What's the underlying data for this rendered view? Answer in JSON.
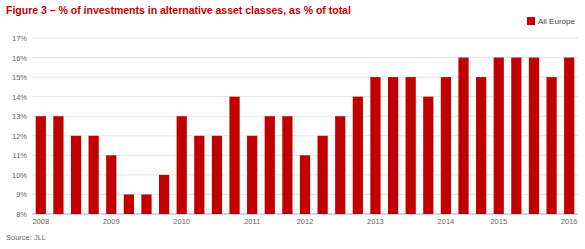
{
  "chart_data": {
    "type": "bar",
    "title": "Figure 3 – % of investments in alternative asset classes, as % of total",
    "source": "Source: JLL",
    "categories": [
      "2008",
      null,
      null,
      null,
      "2009",
      null,
      null,
      null,
      "2010",
      null,
      null,
      null,
      "2011",
      null,
      null,
      "2012",
      null,
      null,
      null,
      "2013",
      null,
      null,
      null,
      "2014",
      null,
      null,
      "2015",
      null,
      null,
      null,
      "2016"
    ],
    "series": [
      {
        "name": "All Europe",
        "color": "#c00000",
        "values": [
          13,
          13,
          12,
          12,
          11,
          9,
          9,
          10,
          13,
          12,
          12,
          14,
          12,
          13,
          13,
          11,
          12,
          13,
          14,
          15,
          15,
          15,
          14,
          15,
          16,
          15,
          16,
          16,
          16,
          15,
          16
        ]
      }
    ],
    "ylim": [
      8,
      17
    ],
    "yticks": [
      {
        "value": 8,
        "label": "8%"
      },
      {
        "value": 9,
        "label": "9%"
      },
      {
        "value": 10,
        "label": "10%"
      },
      {
        "value": 11,
        "label": "11%"
      },
      {
        "value": 12,
        "label": "12%"
      },
      {
        "value": 13,
        "label": "13%"
      },
      {
        "value": 14,
        "label": "14%"
      },
      {
        "value": 15,
        "label": "15%"
      },
      {
        "value": 16,
        "label": "16%"
      },
      {
        "value": 17,
        "label": "17%"
      }
    ],
    "grid": true,
    "legend": "top-right"
  }
}
